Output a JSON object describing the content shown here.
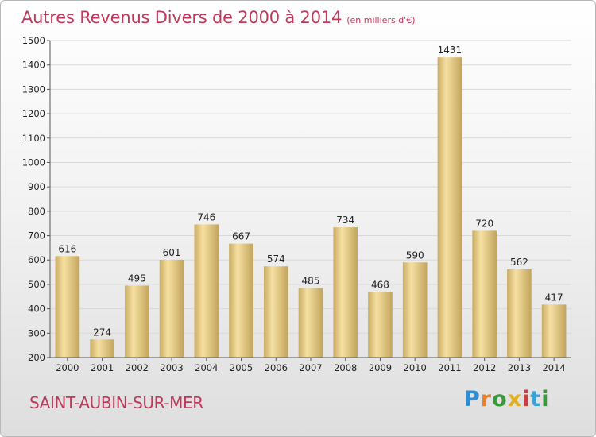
{
  "header": {
    "title": "Autres Revenus Divers de 2000 à 2014",
    "unit": "(en milliers d'€)"
  },
  "footer": {
    "city": "SAINT-AUBIN-SUR-MER",
    "logo": [
      "P",
      "r",
      "o",
      "x",
      "i",
      "t",
      "i"
    ]
  },
  "colors": {
    "title": "#c0395a",
    "bar_light": "#f6e0a2",
    "bar_dark": "#c9ac64",
    "grid": "#d9d9d9"
  },
  "chart_data": {
    "type": "bar",
    "title": "Autres Revenus Divers de 2000 à 2014",
    "subtitle": "(en milliers d'€)",
    "categories": [
      "2000",
      "2001",
      "2002",
      "2003",
      "2004",
      "2005",
      "2006",
      "2007",
      "2008",
      "2009",
      "2010",
      "2011",
      "2012",
      "2013",
      "2014"
    ],
    "values": [
      616,
      274,
      495,
      601,
      746,
      667,
      574,
      485,
      734,
      468,
      590,
      1431,
      720,
      562,
      417
    ],
    "ylim": [
      200,
      1500
    ],
    "yticks": [
      200,
      300,
      400,
      500,
      600,
      700,
      800,
      900,
      1000,
      1100,
      1200,
      1300,
      1400,
      1500
    ],
    "grid": true,
    "legend": "none"
  }
}
